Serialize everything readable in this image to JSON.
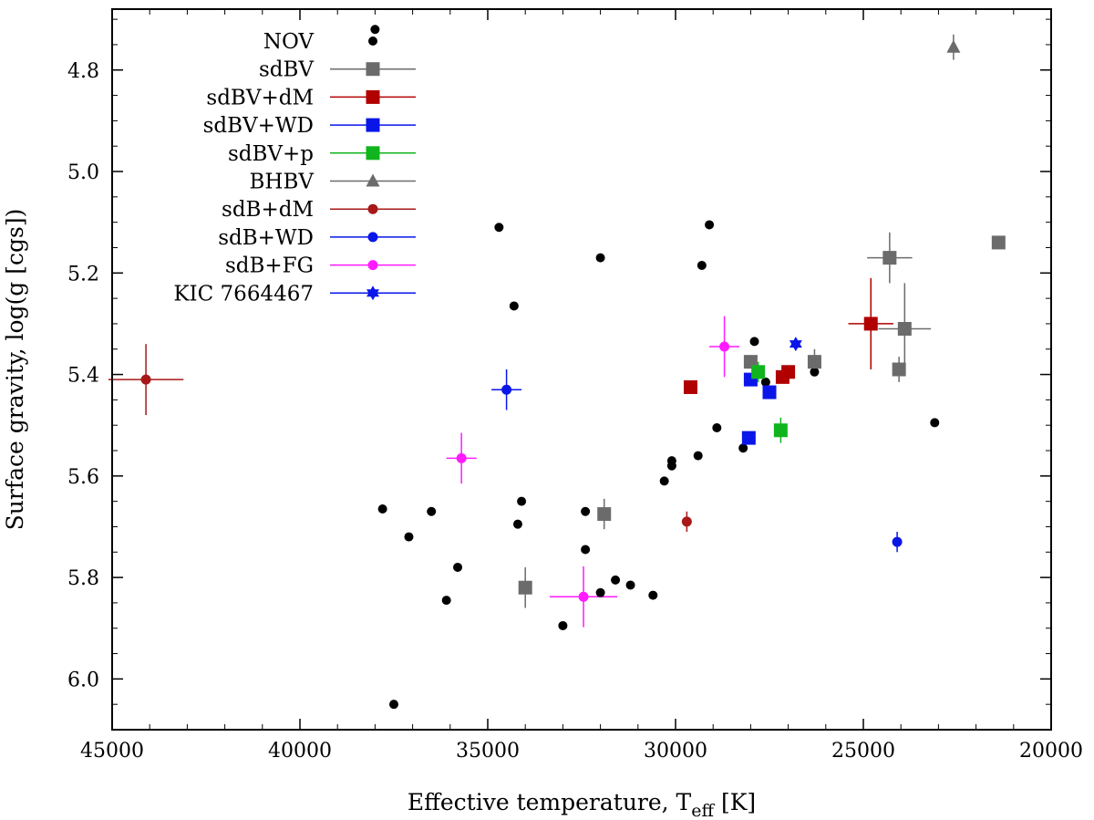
{
  "chart_data": {
    "type": "scatter",
    "title": "",
    "xlabel_main": "Effective temperature, T",
    "xlabel_sub": "eff",
    "xlabel_unit": " [K]",
    "ylabel": "Surface gravity, log(g [cgs])",
    "xlim": [
      45000,
      20000
    ],
    "ylim": [
      4.68,
      6.1
    ],
    "x_ticks": [
      45000,
      40000,
      35000,
      30000,
      25000,
      20000
    ],
    "x_tick_labels": [
      "45000",
      "40000",
      "35000",
      "30000",
      "25000",
      "20000"
    ],
    "y_ticks": [
      4.8,
      5.0,
      5.2,
      5.4,
      5.6,
      5.8,
      6.0
    ],
    "y_tick_labels": [
      "4.8",
      "5.0",
      "5.2",
      "5.4",
      "5.6",
      "5.8",
      "6.0"
    ],
    "legend_position": "top-left",
    "series": [
      {
        "name": "NOV",
        "marker": "dot",
        "color": "#000000",
        "points": [
          {
            "x": 38000,
            "y": 4.72
          },
          {
            "x": 34700,
            "y": 5.11
          },
          {
            "x": 29100,
            "y": 5.105
          },
          {
            "x": 32000,
            "y": 5.17
          },
          {
            "x": 29300,
            "y": 5.185
          },
          {
            "x": 34300,
            "y": 5.265
          },
          {
            "x": 27900,
            "y": 5.335
          },
          {
            "x": 27600,
            "y": 5.415
          },
          {
            "x": 26300,
            "y": 5.395
          },
          {
            "x": 23100,
            "y": 5.495
          },
          {
            "x": 28900,
            "y": 5.505
          },
          {
            "x": 28200,
            "y": 5.545
          },
          {
            "x": 29400,
            "y": 5.56
          },
          {
            "x": 30100,
            "y": 5.57
          },
          {
            "x": 30100,
            "y": 5.58
          },
          {
            "x": 30300,
            "y": 5.61
          },
          {
            "x": 37800,
            "y": 5.665
          },
          {
            "x": 36500,
            "y": 5.67
          },
          {
            "x": 37100,
            "y": 5.72
          },
          {
            "x": 34100,
            "y": 5.65
          },
          {
            "x": 32400,
            "y": 5.67
          },
          {
            "x": 34200,
            "y": 5.695
          },
          {
            "x": 32400,
            "y": 5.745
          },
          {
            "x": 35800,
            "y": 5.78
          },
          {
            "x": 31600,
            "y": 5.805
          },
          {
            "x": 31200,
            "y": 5.815
          },
          {
            "x": 32000,
            "y": 5.83
          },
          {
            "x": 30600,
            "y": 5.835
          },
          {
            "x": 36100,
            "y": 5.845
          },
          {
            "x": 33000,
            "y": 5.895
          },
          {
            "x": 37500,
            "y": 6.05
          }
        ]
      },
      {
        "name": "sdBV",
        "marker": "square",
        "color": "#6b6b6b",
        "points": [
          {
            "x": 21400,
            "y": 5.14
          },
          {
            "x": 24300,
            "y": 5.17,
            "xerr": 600,
            "yerr": 0.05
          },
          {
            "x": 23900,
            "y": 5.31,
            "xerr": 700,
            "yerr": 0.09
          },
          {
            "x": 26300,
            "y": 5.375,
            "xerr": 0,
            "yerr": 0.025
          },
          {
            "x": 28000,
            "y": 5.375
          },
          {
            "x": 24050,
            "y": 5.39,
            "xerr": 0,
            "yerr": 0.025
          },
          {
            "x": 31900,
            "y": 5.675,
            "xerr": 0,
            "yerr": 0.03
          },
          {
            "x": 34000,
            "y": 5.82,
            "xerr": 0,
            "yerr": 0.04
          }
        ]
      },
      {
        "name": "sdBV+dM",
        "marker": "square",
        "color": "#b00000",
        "points": [
          {
            "x": 24800,
            "y": 5.3,
            "xerr": 600,
            "yerr": 0.09
          },
          {
            "x": 27000,
            "y": 5.395
          },
          {
            "x": 27150,
            "y": 5.405
          },
          {
            "x": 29600,
            "y": 5.425
          }
        ]
      },
      {
        "name": "sdBV+WD",
        "marker": "square",
        "color": "#0a16e8",
        "points": [
          {
            "x": 28000,
            "y": 5.41
          },
          {
            "x": 27500,
            "y": 5.435
          },
          {
            "x": 28050,
            "y": 5.525
          }
        ]
      },
      {
        "name": "sdBV+p",
        "marker": "square",
        "color": "#10b51d",
        "points": [
          {
            "x": 27800,
            "y": 5.395,
            "xerr": 0,
            "yerr": 0.02
          },
          {
            "x": 27200,
            "y": 5.51,
            "xerr": 0,
            "yerr": 0.025
          }
        ]
      },
      {
        "name": "BHBV",
        "marker": "triangle",
        "color": "#6b6b6b",
        "points": [
          {
            "x": 22600,
            "y": 4.755,
            "xerr": 0,
            "yerr": 0.025
          }
        ]
      },
      {
        "name": "sdB+dM",
        "marker": "circle",
        "color": "#a81818",
        "points": [
          {
            "x": 44100,
            "y": 5.41,
            "xerr": 1000,
            "yerr": 0.07
          },
          {
            "x": 29700,
            "y": 5.69,
            "xerr": 0,
            "yerr": 0.02
          }
        ]
      },
      {
        "name": "sdB+WD",
        "marker": "circle",
        "color": "#0a16e8",
        "points": [
          {
            "x": 34500,
            "y": 5.43,
            "xerr": 400,
            "yerr": 0.04
          },
          {
            "x": 24100,
            "y": 5.73,
            "xerr": 0,
            "yerr": 0.02
          }
        ]
      },
      {
        "name": "sdB+FG",
        "marker": "circle",
        "color": "#ff1aff",
        "points": [
          {
            "x": 35700,
            "y": 5.565,
            "xerr": 400,
            "yerr": 0.05
          },
          {
            "x": 28700,
            "y": 5.345,
            "xerr": 400,
            "yerr": 0.06
          },
          {
            "x": 32450,
            "y": 5.838,
            "xerr": 900,
            "yerr": 0.06
          }
        ]
      },
      {
        "name": "KIC 7664467",
        "marker": "star",
        "color": "#0a16e8",
        "points": [
          {
            "x": 26800,
            "y": 5.34
          }
        ]
      }
    ]
  }
}
